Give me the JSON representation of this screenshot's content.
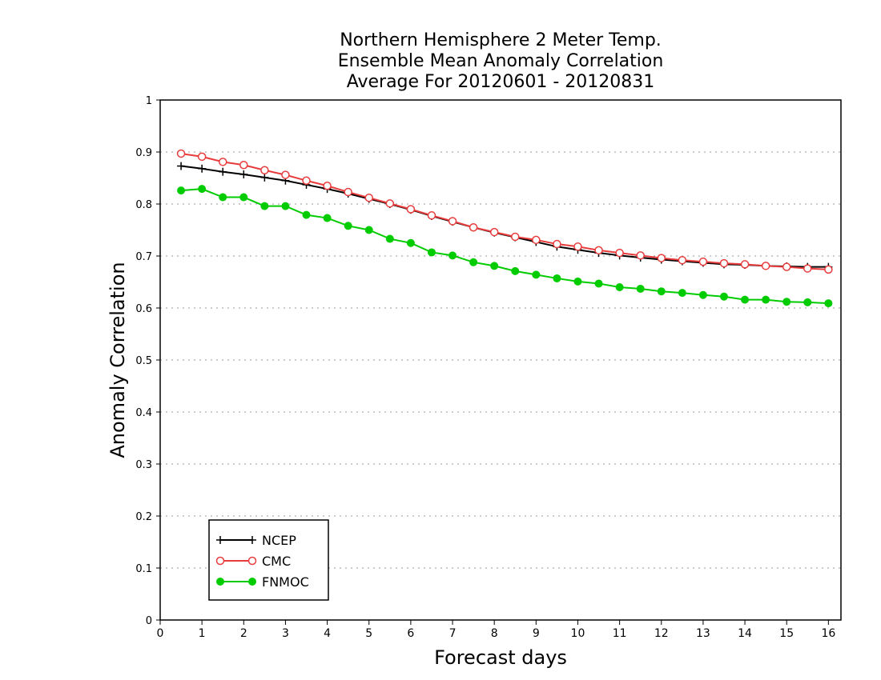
{
  "chart_data": {
    "type": "line",
    "title_lines": [
      "Northern Hemisphere 2 Meter Temp.",
      "Ensemble Mean Anomaly Correlation",
      "Average For 20120601 - 20120831"
    ],
    "xlabel": "Forecast days",
    "ylabel": "Anomaly Correlation",
    "xlim": [
      0,
      16.3
    ],
    "ylim": [
      0,
      1
    ],
    "xticks": [
      0,
      1,
      2,
      3,
      4,
      5,
      6,
      7,
      8,
      9,
      10,
      11,
      12,
      13,
      14,
      15,
      16
    ],
    "yticks": [
      0,
      0.1,
      0.2,
      0.3,
      0.4,
      0.5,
      0.6,
      0.7,
      0.8,
      0.9,
      1
    ],
    "ytick_labels": [
      "0",
      "0.1",
      "0.2",
      "0.3",
      "0.4",
      "0.5",
      "0.6",
      "0.7",
      "0.8",
      "0.9",
      "1"
    ],
    "grid": "horizontal dotted",
    "legend_position": "bottom-left",
    "x": [
      0.5,
      1,
      1.5,
      2,
      2.5,
      3,
      3.5,
      4,
      4.5,
      5,
      5.5,
      6,
      6.5,
      7,
      7.5,
      8,
      8.5,
      9,
      9.5,
      10,
      10.5,
      11,
      11.5,
      12,
      12.5,
      13,
      13.5,
      14,
      14.5,
      15,
      15.5,
      16
    ],
    "series": [
      {
        "name": "NCEP",
        "color": "#000000",
        "marker": "plus",
        "values": [
          0.873,
          0.868,
          0.862,
          0.857,
          0.851,
          0.845,
          0.837,
          0.829,
          0.82,
          0.81,
          0.8,
          0.789,
          0.777,
          0.766,
          0.755,
          0.745,
          0.736,
          0.727,
          0.718,
          0.712,
          0.706,
          0.701,
          0.697,
          0.693,
          0.69,
          0.687,
          0.684,
          0.683,
          0.681,
          0.68,
          0.679,
          0.679
        ]
      },
      {
        "name": "CMC",
        "color": "#e83c3c",
        "marker": "open-circle",
        "values": [
          0.897,
          0.891,
          0.881,
          0.875,
          0.865,
          0.856,
          0.845,
          0.835,
          0.823,
          0.812,
          0.801,
          0.79,
          0.778,
          0.767,
          0.755,
          0.746,
          0.737,
          0.731,
          0.723,
          0.718,
          0.711,
          0.706,
          0.701,
          0.696,
          0.692,
          0.689,
          0.686,
          0.684,
          0.681,
          0.679,
          0.676,
          0.674
        ]
      },
      {
        "name": "FNMOC",
        "color": "#00cc00",
        "marker": "filled-circle",
        "values": [
          0.826,
          0.829,
          0.813,
          0.813,
          0.796,
          0.796,
          0.779,
          0.773,
          0.758,
          0.75,
          0.733,
          0.725,
          0.707,
          0.701,
          0.688,
          0.681,
          0.671,
          0.664,
          0.657,
          0.651,
          0.647,
          0.64,
          0.637,
          0.632,
          0.629,
          0.625,
          0.622,
          0.616,
          0.616,
          0.612,
          0.611,
          0.609
        ]
      }
    ]
  }
}
